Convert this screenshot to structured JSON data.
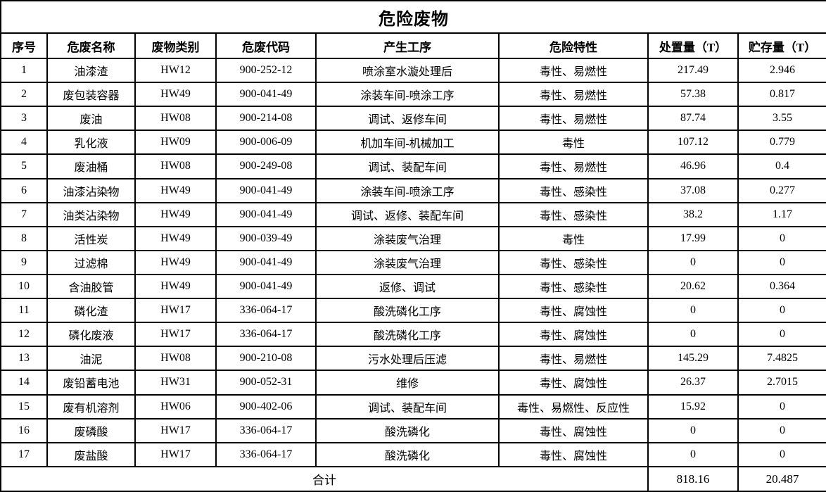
{
  "title": "危险废物",
  "columns": [
    "序号",
    "危废名称",
    "废物类别",
    "危废代码",
    "产生工序",
    "危险特性",
    "处置量（T）",
    "贮存量（T）"
  ],
  "rows": [
    [
      "1",
      "油漆渣",
      "HW12",
      "900-252-12",
      "喷涂室水漩处理后",
      "毒性、易燃性",
      "217.49",
      "2.946"
    ],
    [
      "2",
      "废包装容器",
      "HW49",
      "900-041-49",
      "涂装车间-喷涂工序",
      "毒性、易燃性",
      "57.38",
      "0.817"
    ],
    [
      "3",
      "废油",
      "HW08",
      "900-214-08",
      "调试、返修车间",
      "毒性、易燃性",
      "87.74",
      "3.55"
    ],
    [
      "4",
      "乳化液",
      "HW09",
      "900-006-09",
      "机加车间-机械加工",
      "毒性",
      "107.12",
      "0.779"
    ],
    [
      "5",
      "废油桶",
      "HW08",
      "900-249-08",
      "调试、装配车间",
      "毒性、易燃性",
      "46.96",
      "0.4"
    ],
    [
      "6",
      "油漆沾染物",
      "HW49",
      "900-041-49",
      "涂装车间-喷涂工序",
      "毒性、感染性",
      "37.08",
      "0.277"
    ],
    [
      "7",
      "油类沾染物",
      "HW49",
      "900-041-49",
      "调试、返修、装配车间",
      "毒性、感染性",
      "38.2",
      "1.17"
    ],
    [
      "8",
      "活性炭",
      "HW49",
      "900-039-49",
      "涂装废气治理",
      "毒性",
      "17.99",
      "0"
    ],
    [
      "9",
      "过滤棉",
      "HW49",
      "900-041-49",
      "涂装废气治理",
      "毒性、感染性",
      "0",
      "0"
    ],
    [
      "10",
      "含油胶管",
      "HW49",
      "900-041-49",
      "返修、调试",
      "毒性、感染性",
      "20.62",
      "0.364"
    ],
    [
      "11",
      "磷化渣",
      "HW17",
      "336-064-17",
      "酸洗磷化工序",
      "毒性、腐蚀性",
      "0",
      "0"
    ],
    [
      "12",
      "磷化废液",
      "HW17",
      "336-064-17",
      "酸洗磷化工序",
      "毒性、腐蚀性",
      "0",
      "0"
    ],
    [
      "13",
      "油泥",
      "HW08",
      "900-210-08",
      "污水处理后压滤",
      "毒性、易燃性",
      "145.29",
      "7.4825"
    ],
    [
      "14",
      "废铅蓄电池",
      "HW31",
      "900-052-31",
      "维修",
      "毒性、腐蚀性",
      "26.37",
      "2.7015"
    ],
    [
      "15",
      "废有机溶剂",
      "HW06",
      "900-402-06",
      "调试、装配车间",
      "毒性、易燃性、反应性",
      "15.92",
      "0"
    ],
    [
      "16",
      "废磷酸",
      "HW17",
      "336-064-17",
      "酸洗磷化",
      "毒性、腐蚀性",
      "0",
      "0"
    ],
    [
      "17",
      "废盐酸",
      "HW17",
      "336-064-17",
      "酸洗磷化",
      "毒性、腐蚀性",
      "0",
      "0"
    ]
  ],
  "footer": {
    "label": "合计",
    "disposal_total": "818.16",
    "storage_total": "20.487"
  },
  "colors": {
    "border": "#000000",
    "background": "#ffffff",
    "text": "#000000"
  }
}
